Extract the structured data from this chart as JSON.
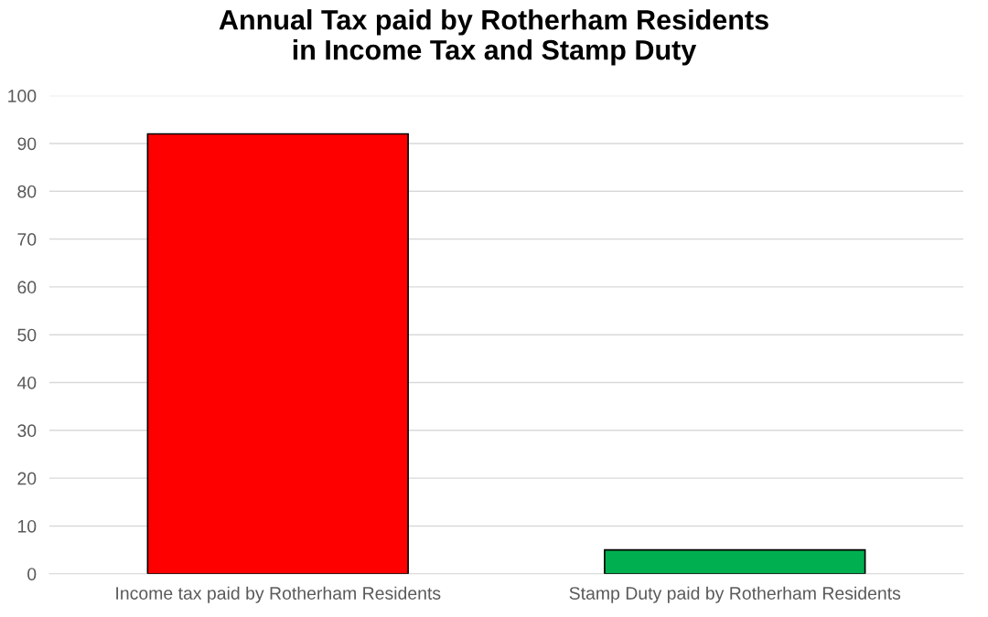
{
  "chart_data": {
    "type": "bar",
    "title": "Annual Tax paid by Rotherham Residents\nin Income Tax and Stamp Duty",
    "categories": [
      "Income tax paid by Rotherham Residents",
      "Stamp Duty paid by Rotherham Residents"
    ],
    "values": [
      92,
      5
    ],
    "colors": [
      "#ff0000",
      "#00b050"
    ],
    "ylim": [
      0,
      100
    ],
    "yticks": [
      0,
      10,
      20,
      30,
      40,
      50,
      60,
      70,
      80,
      90,
      100
    ],
    "grid": "y"
  }
}
